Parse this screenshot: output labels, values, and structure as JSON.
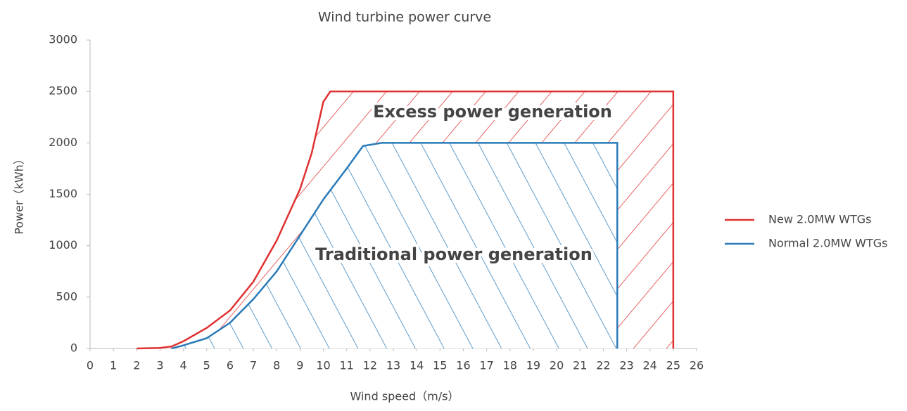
{
  "chart_data": {
    "type": "line",
    "title": "Wind turbine power curve",
    "x_label": "Wind speed（m/s）",
    "y_label": "Power（kWh）",
    "xlim": [
      0,
      26
    ],
    "xticks": [
      0,
      1,
      2,
      3,
      4,
      5,
      6,
      7,
      8,
      9,
      10,
      11,
      12,
      13,
      14,
      15,
      16,
      17,
      18,
      19,
      20,
      21,
      22,
      23,
      24,
      25,
      26
    ],
    "ylim": [
      0,
      3000
    ],
    "yticks": [
      0,
      500,
      1000,
      1500,
      2000,
      2500,
      3000
    ],
    "legend": "right",
    "series": [
      {
        "name": "New 2.0MW WTGs",
        "color": "#e03030",
        "x": [
          2,
          3,
          3.5,
          4,
          5,
          6,
          7,
          8,
          9,
          9.5,
          10,
          10.3,
          25,
          25
        ],
        "values": [
          0,
          5,
          20,
          70,
          200,
          370,
          650,
          1050,
          1550,
          1900,
          2400,
          2500,
          2500,
          0
        ]
      },
      {
        "name": "Normal 2.0MW WTGs",
        "color": "#2a7ab8",
        "x": [
          3.5,
          4,
          5,
          6,
          7,
          8,
          9,
          10,
          11,
          11.7,
          12.5,
          22.6,
          22.6
        ],
        "values": [
          0,
          30,
          100,
          250,
          480,
          750,
          1100,
          1450,
          1750,
          1970,
          2000,
          2000,
          0
        ]
      }
    ],
    "annotations": [
      "Excess power generation",
      "Traditional power generation"
    ]
  }
}
